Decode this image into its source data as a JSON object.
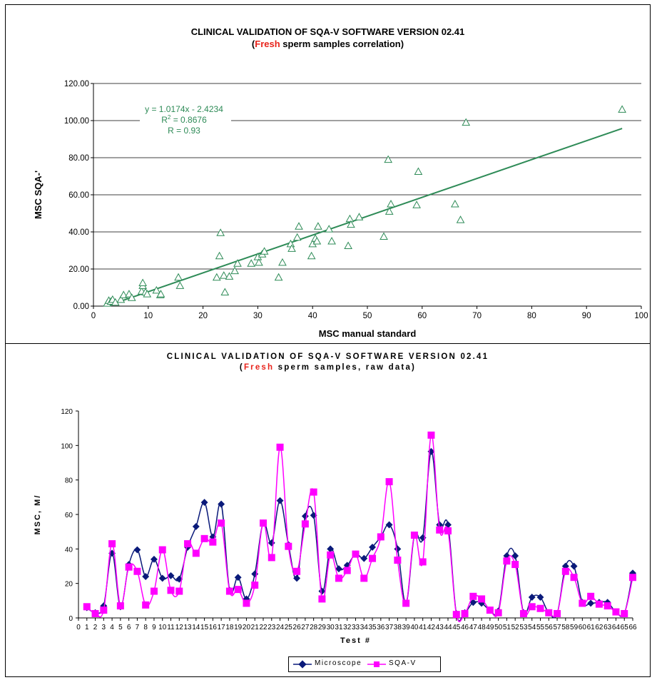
{
  "colors": {
    "trend": "#2e8b57",
    "scatter": "#2e8b57",
    "microscope": "#0a1a7a",
    "sqa": "#ff00ff",
    "highlight": "#e8231b"
  },
  "chart_data": [
    {
      "type": "scatter",
      "title": "CLINICAL VALIDATION OF SQA-V SOFTWARE VERSION 02.41",
      "subtitle_highlight": "Fresh",
      "subtitle_rest": " sperm samples correlation)",
      "subtitle_open": "(",
      "xlabel": "MSC manual standard",
      "ylabel": "MSC SQA-'",
      "xlim": [
        0,
        100
      ],
      "ylim": [
        0,
        120
      ],
      "x_ticks": [
        "0",
        "10",
        "20",
        "30",
        "40",
        "50",
        "60",
        "70",
        "80",
        "90",
        "100"
      ],
      "y_ticks": [
        "0.00",
        "20.00",
        "40.00",
        "60.00",
        "80.00",
        "100.00",
        "120.00"
      ],
      "grid": "horizontal",
      "annotation": [
        "y = 1.0174x - 2.4234",
        "R2 = 0.8676",
        "R = 0.93"
      ],
      "trendline": {
        "slope": 1.0174,
        "intercept": -2.4234,
        "x_range": [
          2.5,
          96.5
        ]
      },
      "points": [
        [
          2.5,
          1.5
        ],
        [
          2.8,
          3.0
        ],
        [
          3.2,
          2.5
        ],
        [
          3.5,
          3.5
        ],
        [
          4.0,
          2.0
        ],
        [
          5.0,
          3.5
        ],
        [
          5.5,
          6.0
        ],
        [
          6.5,
          6.5
        ],
        [
          7.0,
          4.5
        ],
        [
          8.8,
          8.0
        ],
        [
          9.0,
          11.0
        ],
        [
          9.0,
          12.5
        ],
        [
          9.5,
          7.5
        ],
        [
          9.8,
          6.5
        ],
        [
          11.5,
          8.5
        ],
        [
          12.2,
          6.0
        ],
        [
          12.3,
          6.5
        ],
        [
          15.5,
          15.5
        ],
        [
          15.8,
          11.0
        ],
        [
          22.5,
          15.5
        ],
        [
          23.0,
          27.0
        ],
        [
          23.2,
          39.5
        ],
        [
          23.8,
          16.5
        ],
        [
          24.0,
          7.5
        ],
        [
          24.8,
          16.0
        ],
        [
          25.8,
          19.0
        ],
        [
          26.3,
          23.0
        ],
        [
          28.8,
          23.0
        ],
        [
          30.0,
          26.5
        ],
        [
          30.2,
          23.5
        ],
        [
          30.8,
          28.0
        ],
        [
          31.2,
          29.5
        ],
        [
          33.8,
          15.5
        ],
        [
          34.5,
          23.5
        ],
        [
          36.0,
          33.5
        ],
        [
          36.2,
          31.0
        ],
        [
          37.2,
          37.0
        ],
        [
          37.5,
          43.0
        ],
        [
          39.8,
          27.0
        ],
        [
          40.0,
          33.5
        ],
        [
          40.5,
          36.5
        ],
        [
          40.8,
          35.0
        ],
        [
          41.0,
          43.0
        ],
        [
          43.0,
          41.5
        ],
        [
          43.5,
          35.0
        ],
        [
          46.5,
          32.5
        ],
        [
          46.8,
          47.0
        ],
        [
          47.0,
          44.0
        ],
        [
          48.5,
          48.0
        ],
        [
          53.0,
          37.5
        ],
        [
          53.8,
          79.0
        ],
        [
          54.0,
          51.0
        ],
        [
          54.3,
          55.0
        ],
        [
          59.0,
          54.5
        ],
        [
          59.3,
          72.5
        ],
        [
          66.0,
          55.0
        ],
        [
          67.0,
          46.5
        ],
        [
          68.0,
          99.0
        ],
        [
          96.5,
          106.0
        ]
      ]
    },
    {
      "type": "line",
      "title": "CLINICAL VALIDATION OF SQA-V SOFTWARE VERSION 02.41",
      "subtitle_open": "(",
      "subtitle_highlight": "Fresh",
      "subtitle_rest": " sperm samples, raw data)",
      "xlabel": "Test #",
      "ylabel": "MSC, M/",
      "xlim": [
        0,
        66
      ],
      "ylim": [
        0,
        120
      ],
      "x_ticks": [
        "0",
        "1",
        "2",
        "3",
        "4",
        "5",
        "6",
        "7",
        "8",
        "9",
        "10",
        "11",
        "12",
        "13",
        "14",
        "15",
        "16",
        "17",
        "18",
        "19",
        "20",
        "21",
        "22",
        "23",
        "24",
        "25",
        "26",
        "27",
        "28",
        "29",
        "30",
        "31",
        "32",
        "33",
        "34",
        "35",
        "36",
        "37",
        "38",
        "39",
        "40",
        "41",
        "42",
        "43",
        "44",
        "45",
        "46",
        "47",
        "48",
        "49",
        "50",
        "51",
        "52",
        "53",
        "54",
        "55",
        "56",
        "57",
        "58",
        "59",
        "60",
        "61",
        "62",
        "63",
        "64",
        "65",
        "66"
      ],
      "y_ticks": [
        "0",
        "20",
        "40",
        "60",
        "80",
        "100",
        "120"
      ],
      "legend_position": "bottom",
      "series": [
        {
          "name": "Microscope",
          "values": [
            6,
            3,
            7,
            37.5,
            6.5,
            31,
            39.5,
            24,
            34,
            23,
            24.5,
            22.5,
            41,
            53,
            67,
            47,
            66,
            16,
            23.5,
            11,
            25.5,
            55,
            43.5,
            68,
            42.5,
            23,
            59,
            59.5,
            15.5,
            40,
            28.5,
            30.5,
            37,
            34.5,
            41,
            47,
            54,
            40,
            8.5,
            48,
            46.5,
            96.5,
            54,
            54,
            2.5,
            3,
            9,
            8.5,
            4.5,
            4,
            36,
            36,
            3,
            12,
            12,
            3,
            2.5,
            30,
            30,
            9,
            8.5,
            9,
            9,
            3.5,
            2.5,
            26
          ]
        },
        {
          "name": "SQA-V",
          "values": [
            6.5,
            2.5,
            4.5,
            43,
            7,
            29.5,
            27,
            7.5,
            15.5,
            39.5,
            16,
            15.5,
            43,
            37.5,
            46,
            44,
            55,
            15.5,
            16.5,
            8.5,
            19,
            55,
            35,
            99,
            41.5,
            27,
            54.5,
            73,
            11,
            36.5,
            23,
            27.5,
            37,
            23,
            34.5,
            47,
            79,
            33.5,
            8.5,
            48,
            32.5,
            106,
            51,
            50.5,
            2,
            2.5,
            12.5,
            11,
            4.5,
            3,
            33,
            31,
            2.5,
            6.5,
            5.5,
            3,
            2.5,
            27,
            23.5,
            8.5,
            12.5,
            8,
            7,
            3.5,
            2.5,
            23.5
          ]
        }
      ]
    }
  ]
}
